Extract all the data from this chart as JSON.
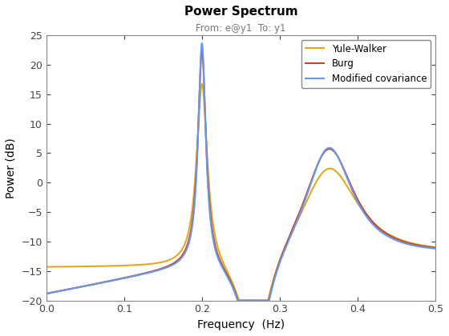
{
  "title": "Power Spectrum",
  "subtitle": "From: e@y1  To: y1",
  "xlabel": "Frequency  (Hz)",
  "ylabel": "Power (dB)",
  "xlim": [
    0,
    0.5
  ],
  "ylim": [
    -20,
    25
  ],
  "yticks": [
    -20,
    -15,
    -10,
    -5,
    0,
    5,
    10,
    15,
    20,
    25
  ],
  "xticks": [
    0,
    0.1,
    0.2,
    0.3,
    0.4,
    0.5
  ],
  "colors": {
    "modified_covariance": "#6699EE",
    "burg": "#CC4422",
    "yule_walker": "#DDAA22"
  },
  "legend_labels": [
    "Modified covariance",
    "Burg",
    "Yule-Walker"
  ],
  "line_width": 1.5,
  "background_color": "#FFFFFF"
}
